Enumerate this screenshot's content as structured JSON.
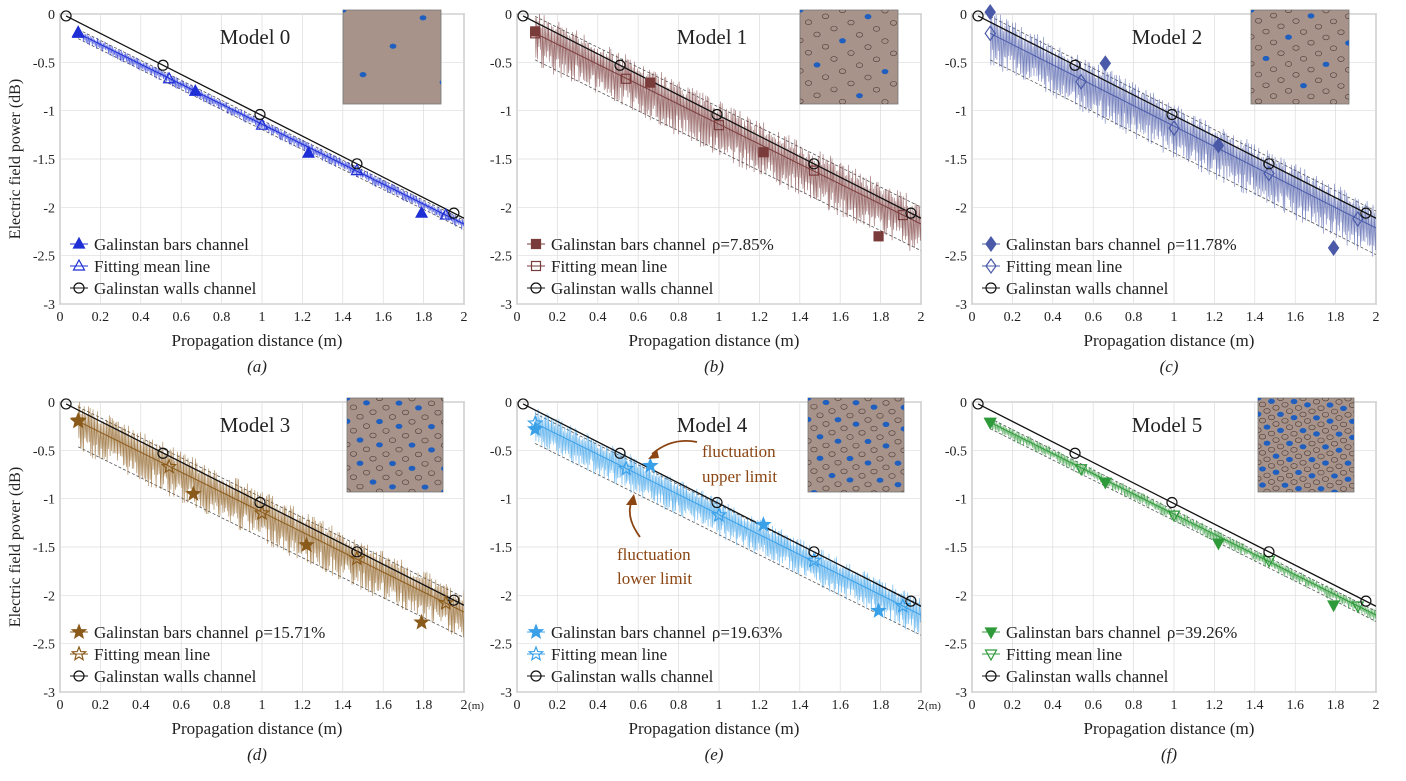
{
  "figure": {
    "shared": {
      "xlabel": "Propagation distance (m)",
      "ylabel": "Electric field power (dB)",
      "xlim": [
        0,
        2
      ],
      "ylim": [
        -3,
        0
      ],
      "xticks": [
        "0",
        "0.2",
        "0.4",
        "0.6",
        "0.8",
        "1",
        "1.2",
        "1.4",
        "1.6",
        "1.8",
        "2"
      ],
      "yticks": [
        "0",
        "-0.5",
        "-1",
        "-1.5",
        "-2",
        "-2.5",
        "-3"
      ],
      "x_unit_tag": "(m)",
      "walls_label": "Galinstan walls channel",
      "mean_label": "Fitting mean line",
      "grid": true
    },
    "annotations": {
      "upper": [
        "fluctuation",
        "upper limit"
      ],
      "lower": [
        "fluctuation",
        "lower limit"
      ],
      "annotation_color": "#8b4513"
    }
  },
  "chart_data": [
    {
      "type": "line",
      "title": "Model 0",
      "caption": "(a)",
      "series": [
        {
          "name": "Galinstan bars channel",
          "x": [
            0.09,
            0.67,
            1.23,
            1.79
          ],
          "y": [
            -0.19,
            -0.8,
            -1.44,
            -2.06
          ]
        },
        {
          "name": "Fitting mean line",
          "x": [
            0.09,
            0.54,
            1.0,
            1.47,
            1.91
          ],
          "y": [
            -0.2,
            -0.67,
            -1.15,
            -1.62,
            -2.08
          ]
        },
        {
          "name": "Galinstan walls channel",
          "x": [
            0.03,
            0.51,
            0.99,
            1.47,
            1.95
          ],
          "y": [
            -0.02,
            -0.53,
            -1.04,
            -1.55,
            -2.06
          ]
        }
      ],
      "fluctuation_band": [
        0.08,
        0.1
      ],
      "color": "#1f2fd6",
      "marker": "triangle"
    },
    {
      "type": "line",
      "title": "Model 1",
      "caption": "(b)",
      "rho": "ρ=7.85%",
      "series": [
        {
          "name": "Galinstan bars channel",
          "x": [
            0.09,
            0.66,
            1.22,
            1.79
          ],
          "y": [
            -0.18,
            -0.71,
            -1.43,
            -2.3
          ]
        },
        {
          "name": "Fitting mean line",
          "x": [
            0.09,
            0.54,
            1.0,
            1.47,
            1.91
          ],
          "y": [
            -0.2,
            -0.67,
            -1.15,
            -1.62,
            -2.08
          ]
        },
        {
          "name": "Galinstan walls channel",
          "x": [
            0.03,
            0.51,
            0.99,
            1.47,
            1.95
          ],
          "y": [
            -0.02,
            -0.53,
            -1.04,
            -1.55,
            -2.06
          ]
        }
      ],
      "fluctuation_band": [
        0.35,
        0.5
      ],
      "color": "#7a3b3b",
      "marker": "square"
    },
    {
      "type": "line",
      "title": "Model 2",
      "caption": "(c)",
      "rho": "ρ=11.78%",
      "series": [
        {
          "name": "Galinstan bars channel",
          "x": [
            0.09,
            0.66,
            1.22,
            1.79
          ],
          "y": [
            0.02,
            -0.51,
            -1.36,
            -2.42
          ]
        },
        {
          "name": "Fitting mean line",
          "x": [
            0.09,
            0.54,
            1.0,
            1.47,
            1.91
          ],
          "y": [
            -0.2,
            -0.7,
            -1.18,
            -1.65,
            -2.12
          ]
        },
        {
          "name": "Galinstan walls channel",
          "x": [
            0.03,
            0.51,
            0.99,
            1.47,
            1.95
          ],
          "y": [
            -0.02,
            -0.53,
            -1.04,
            -1.55,
            -2.06
          ]
        }
      ],
      "fluctuation_band": [
        0.35,
        0.5
      ],
      "color": "#4a5aa8",
      "marker": "diamond"
    },
    {
      "type": "line",
      "title": "Model 3",
      "caption": "(d)",
      "rho": "ρ=15.71%",
      "series": [
        {
          "name": "Galinstan bars channel",
          "x": [
            0.09,
            0.66,
            1.22,
            1.79
          ],
          "y": [
            -0.19,
            -0.95,
            -1.48,
            -2.28
          ]
        },
        {
          "name": "Fitting mean line",
          "x": [
            0.09,
            0.54,
            1.0,
            1.47,
            1.91
          ],
          "y": [
            -0.2,
            -0.67,
            -1.15,
            -1.62,
            -2.08
          ]
        },
        {
          "name": "Galinstan walls channel",
          "x": [
            0.03,
            0.51,
            0.99,
            1.47,
            1.95
          ],
          "y": [
            -0.02,
            -0.53,
            -1.04,
            -1.55,
            -2.05
          ]
        }
      ],
      "fluctuation_band": [
        0.3,
        0.48
      ],
      "color": "#8a5a1a",
      "marker": "star"
    },
    {
      "type": "line",
      "title": "Model 4",
      "caption": "(e)",
      "rho": "ρ=19.63%",
      "series": [
        {
          "name": "Galinstan bars channel",
          "x": [
            0.09,
            0.66,
            1.22,
            1.79
          ],
          "y": [
            -0.28,
            -0.66,
            -1.27,
            -2.16
          ]
        },
        {
          "name": "Fitting mean line",
          "x": [
            0.09,
            0.54,
            1.0,
            1.47,
            1.91
          ],
          "y": [
            -0.22,
            -0.69,
            -1.17,
            -1.64,
            -2.11
          ]
        },
        {
          "name": "Galinstan walls channel",
          "x": [
            0.03,
            0.51,
            0.99,
            1.47,
            1.95
          ],
          "y": [
            -0.02,
            -0.53,
            -1.04,
            -1.55,
            -2.06
          ]
        }
      ],
      "fluctuation_band": [
        0.2,
        0.38
      ],
      "color": "#3aa0e8",
      "marker": "star"
    },
    {
      "type": "line",
      "title": "Model 5",
      "caption": "(f)",
      "rho": "ρ=39.26%",
      "series": [
        {
          "name": "Galinstan bars channel",
          "x": [
            0.09,
            0.66,
            1.22,
            1.79
          ],
          "y": [
            -0.21,
            -0.83,
            -1.46,
            -2.1
          ]
        },
        {
          "name": "Fitting mean line",
          "x": [
            0.09,
            0.54,
            1.0,
            1.47,
            1.91
          ],
          "y": [
            -0.21,
            -0.69,
            -1.17,
            -1.64,
            -2.11
          ]
        },
        {
          "name": "Galinstan walls channel",
          "x": [
            0.03,
            0.51,
            0.99,
            1.47,
            1.95
          ],
          "y": [
            -0.02,
            -0.53,
            -1.04,
            -1.55,
            -2.06
          ]
        }
      ],
      "fluctuation_band": [
        0.08,
        0.12
      ],
      "color": "#2f9a3a",
      "marker": "triangle-down"
    }
  ]
}
